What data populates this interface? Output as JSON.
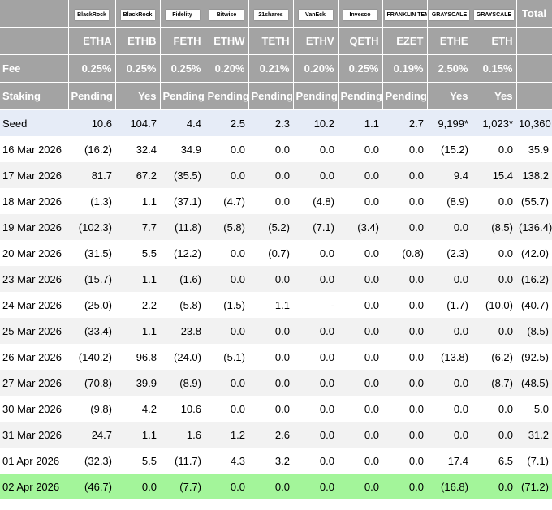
{
  "table": {
    "issuers": [
      "BlackRock",
      "BlackRock",
      "Fidelity",
      "Bitwise",
      "21shares",
      "VanEck",
      "Invesco",
      "FRANKLIN TEMPLETON",
      "GRAYSCALE",
      "GRAYSCALE"
    ],
    "total_header": "Total",
    "tickers": [
      "ETHA",
      "ETHB",
      "FETH",
      "ETHW",
      "TETH",
      "ETHV",
      "QETH",
      "EZET",
      "ETHE",
      "ETH"
    ],
    "header_rows": [
      {
        "label": "Fee",
        "values": [
          "0.25%",
          "0.25%",
          "0.25%",
          "0.20%",
          "0.21%",
          "0.20%",
          "0.25%",
          "0.19%",
          "2.50%",
          "0.15%"
        ]
      },
      {
        "label": "Staking",
        "values": [
          "Pending",
          "Yes",
          "Pending",
          "Pending",
          "Pending",
          "Pending",
          "Pending",
          "Pending",
          "Yes",
          "Yes"
        ]
      }
    ],
    "body_rows": [
      {
        "label": "Seed",
        "values": [
          "10.6",
          "104.7",
          "4.4",
          "2.5",
          "2.3",
          "10.2",
          "1.1",
          "2.7",
          "9,199*",
          "1,023*",
          "10,360"
        ]
      },
      {
        "label": "16 Mar 2026",
        "values": [
          "(16.2)",
          "32.4",
          "34.9",
          "0.0",
          "0.0",
          "0.0",
          "0.0",
          "0.0",
          "(15.2)",
          "0.0",
          "35.9"
        ]
      },
      {
        "label": "17 Mar 2026",
        "values": [
          "81.7",
          "67.2",
          "(35.5)",
          "0.0",
          "0.0",
          "0.0",
          "0.0",
          "0.0",
          "9.4",
          "15.4",
          "138.2"
        ]
      },
      {
        "label": "18 Mar 2026",
        "values": [
          "(1.3)",
          "1.1",
          "(37.1)",
          "(4.7)",
          "0.0",
          "(4.8)",
          "0.0",
          "0.0",
          "(8.9)",
          "0.0",
          "(55.7)"
        ]
      },
      {
        "label": "19 Mar 2026",
        "values": [
          "(102.3)",
          "7.7",
          "(11.8)",
          "(5.8)",
          "(5.2)",
          "(7.1)",
          "(3.4)",
          "0.0",
          "0.0",
          "(8.5)",
          "(136.4)"
        ]
      },
      {
        "label": "20 Mar 2026",
        "values": [
          "(31.5)",
          "5.5",
          "(12.2)",
          "0.0",
          "(0.7)",
          "0.0",
          "0.0",
          "(0.8)",
          "(2.3)",
          "0.0",
          "(42.0)"
        ]
      },
      {
        "label": "23 Mar 2026",
        "values": [
          "(15.7)",
          "1.1",
          "(1.6)",
          "0.0",
          "0.0",
          "0.0",
          "0.0",
          "0.0",
          "0.0",
          "0.0",
          "(16.2)"
        ]
      },
      {
        "label": "24 Mar 2026",
        "values": [
          "(25.0)",
          "2.2",
          "(5.8)",
          "(1.5)",
          "1.1",
          "-",
          "0.0",
          "0.0",
          "(1.7)",
          "(10.0)",
          "(40.7)"
        ]
      },
      {
        "label": "25 Mar 2026",
        "values": [
          "(33.4)",
          "1.1",
          "23.8",
          "0.0",
          "0.0",
          "0.0",
          "0.0",
          "0.0",
          "0.0",
          "0.0",
          "(8.5)"
        ]
      },
      {
        "label": "26 Mar 2026",
        "values": [
          "(140.2)",
          "96.8",
          "(24.0)",
          "(5.1)",
          "0.0",
          "0.0",
          "0.0",
          "0.0",
          "(13.8)",
          "(6.2)",
          "(92.5)"
        ]
      },
      {
        "label": "27 Mar 2026",
        "values": [
          "(70.8)",
          "39.9",
          "(8.9)",
          "0.0",
          "0.0",
          "0.0",
          "0.0",
          "0.0",
          "0.0",
          "(8.7)",
          "(48.5)"
        ]
      },
      {
        "label": "30 Mar 2026",
        "values": [
          "(9.8)",
          "4.2",
          "10.6",
          "0.0",
          "0.0",
          "0.0",
          "0.0",
          "0.0",
          "0.0",
          "0.0",
          "5.0"
        ]
      },
      {
        "label": "31 Mar 2026",
        "values": [
          "24.7",
          "1.1",
          "1.6",
          "1.2",
          "2.6",
          "0.0",
          "0.0",
          "0.0",
          "0.0",
          "0.0",
          "31.2"
        ]
      },
      {
        "label": "01 Apr 2026",
        "values": [
          "(32.3)",
          "5.5",
          "(11.7)",
          "4.3",
          "3.2",
          "0.0",
          "0.0",
          "0.0",
          "17.4",
          "6.5",
          "(7.1)"
        ]
      },
      {
        "label": "02 Apr 2026",
        "values": [
          "(46.7)",
          "0.0",
          "(7.7)",
          "0.0",
          "0.0",
          "0.0",
          "0.0",
          "0.0",
          "(16.8)",
          "0.0",
          "(71.2)"
        ]
      }
    ]
  }
}
